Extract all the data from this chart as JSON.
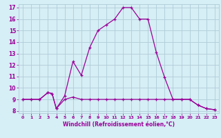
{
  "xlabel": "Windchill (Refroidissement éolien,°C)",
  "xlim": [
    -0.5,
    23.5
  ],
  "ylim": [
    7.8,
    17.3
  ],
  "xticks": [
    0,
    1,
    2,
    3,
    4,
    5,
    6,
    7,
    8,
    9,
    10,
    11,
    12,
    13,
    14,
    15,
    16,
    17,
    18,
    19,
    20,
    21,
    22,
    23
  ],
  "yticks": [
    8,
    9,
    10,
    11,
    12,
    13,
    14,
    15,
    16,
    17
  ],
  "bg_color": "#d6eef5",
  "line_color": "#990099",
  "grid_color": "#b0ccd8",
  "curve1_x": [
    0,
    1,
    2,
    3,
    3.5,
    4,
    5,
    6,
    7,
    8,
    9,
    10,
    11,
    12,
    13,
    14,
    15,
    16,
    17,
    18,
    19,
    20,
    21,
    22,
    23
  ],
  "curve1_y": [
    9,
    9,
    9,
    9.6,
    9.5,
    8.2,
    9,
    9.2,
    9,
    9,
    9,
    9,
    9,
    9,
    9,
    9,
    9,
    9,
    9,
    9,
    9,
    9,
    8.5,
    8.2,
    8.1
  ],
  "curve2_x": [
    0,
    1,
    2,
    3,
    3.5,
    4,
    5,
    6,
    7,
    8,
    9,
    10,
    11,
    12,
    13,
    14,
    15,
    16,
    17,
    18,
    19,
    20,
    21,
    22,
    23
  ],
  "curve2_y": [
    9,
    9,
    9,
    9.6,
    9.5,
    8.2,
    9.3,
    12.3,
    11.1,
    13.5,
    15.0,
    15.5,
    16.0,
    17.0,
    17.0,
    16.0,
    16.0,
    13.1,
    10.9,
    9.0,
    9.0,
    9.0,
    8.5,
    8.2,
    8.1
  ]
}
